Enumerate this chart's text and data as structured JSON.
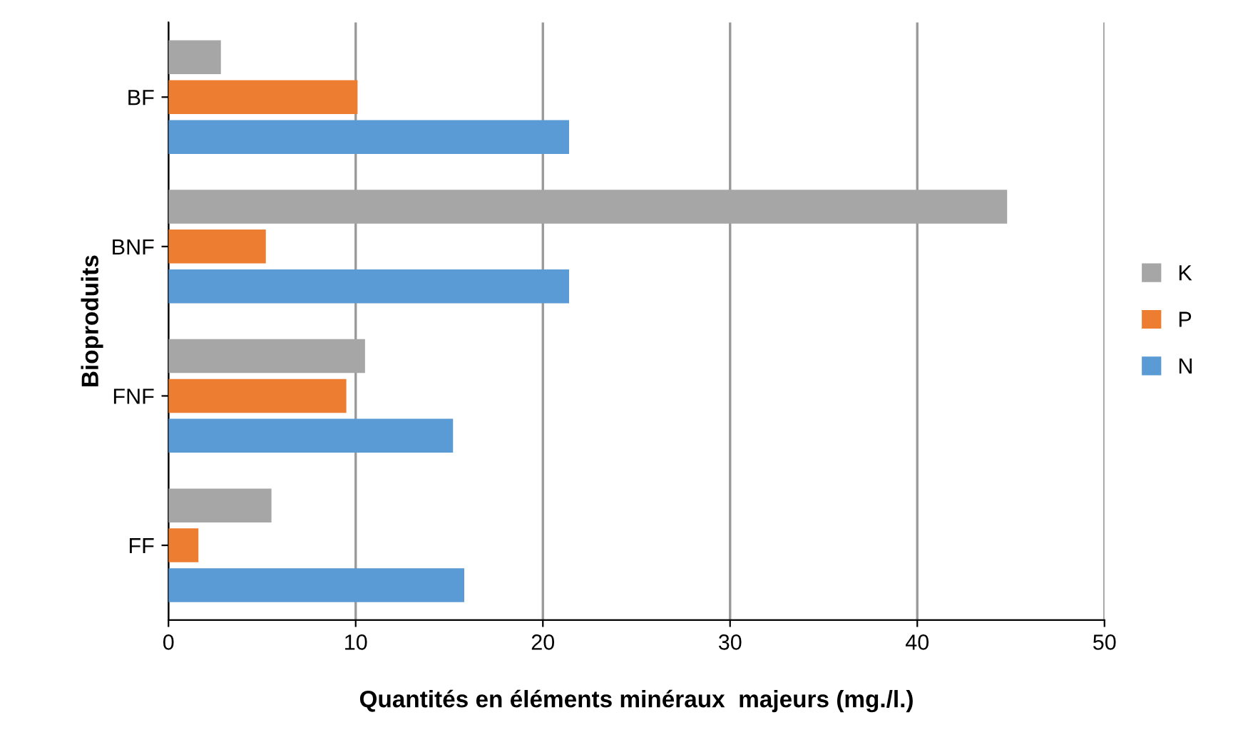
{
  "chart_data": {
    "type": "bar",
    "orientation": "horizontal",
    "xlabel": "Quantités en éléments minéraux  majeurs (mg./l.)",
    "ylabel": "Bioproduits",
    "categories": [
      "BF",
      "BNF",
      "FNF",
      "FF"
    ],
    "series": [
      {
        "name": "K",
        "color": "#a6a6a6",
        "values": [
          2.8,
          44.8,
          10.5,
          5.5
        ]
      },
      {
        "name": "P",
        "color": "#ed7d31",
        "values": [
          10.1,
          5.2,
          9.5,
          1.6
        ]
      },
      {
        "name": "N",
        "color": "#5b9bd5",
        "values": [
          21.4,
          21.4,
          15.2,
          15.8
        ]
      }
    ],
    "xlim": [
      0,
      50
    ],
    "xticks": [
      0,
      10,
      20,
      30,
      40,
      50
    ],
    "grid": "x",
    "legend": "right"
  }
}
